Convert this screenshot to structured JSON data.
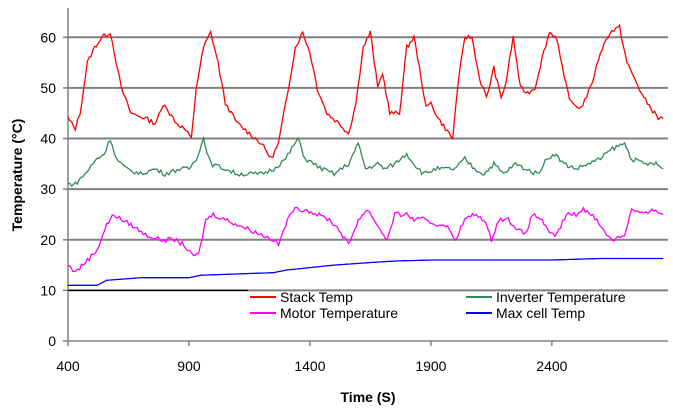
{
  "chart_data": {
    "type": "line",
    "xlabel": "Time (S)",
    "ylabel": "Temperature (°C)",
    "xlim": [
      400,
      2880
    ],
    "ylim": [
      0,
      65
    ],
    "x_ticks": [
      400,
      900,
      1400,
      1900,
      2400
    ],
    "y_ticks": [
      0,
      10,
      20,
      30,
      40,
      50,
      60
    ],
    "grid": "horizontal",
    "legend_placement": "lower-center",
    "series": [
      {
        "name": "Stack Temp",
        "color": "#ff0000",
        "points": [
          [
            400,
            44
          ],
          [
            430,
            42
          ],
          [
            450,
            45
          ],
          [
            480,
            55
          ],
          [
            510,
            58
          ],
          [
            540,
            60
          ],
          [
            575,
            61
          ],
          [
            600,
            55
          ],
          [
            620,
            50
          ],
          [
            660,
            45
          ],
          [
            720,
            44
          ],
          [
            760,
            43
          ],
          [
            800,
            47
          ],
          [
            820,
            45
          ],
          [
            850,
            43
          ],
          [
            880,
            42
          ],
          [
            910,
            40
          ],
          [
            930,
            50
          ],
          [
            960,
            58
          ],
          [
            990,
            61
          ],
          [
            1020,
            55
          ],
          [
            1050,
            47
          ],
          [
            1100,
            43
          ],
          [
            1150,
            41
          ],
          [
            1200,
            39
          ],
          [
            1240,
            36
          ],
          [
            1270,
            39
          ],
          [
            1300,
            47
          ],
          [
            1340,
            58
          ],
          [
            1370,
            61
          ],
          [
            1400,
            57
          ],
          [
            1430,
            50
          ],
          [
            1470,
            45
          ],
          [
            1520,
            43
          ],
          [
            1560,
            41
          ],
          [
            1590,
            47
          ],
          [
            1620,
            58
          ],
          [
            1650,
            61
          ],
          [
            1680,
            50
          ],
          [
            1700,
            53
          ],
          [
            1730,
            45
          ],
          [
            1770,
            45
          ],
          [
            1800,
            58
          ],
          [
            1830,
            60
          ],
          [
            1860,
            52
          ],
          [
            1880,
            46
          ],
          [
            1900,
            47
          ],
          [
            1930,
            44
          ],
          [
            1960,
            42
          ],
          [
            1990,
            40
          ],
          [
            2010,
            50
          ],
          [
            2040,
            60
          ],
          [
            2070,
            60
          ],
          [
            2100,
            52
          ],
          [
            2130,
            48
          ],
          [
            2160,
            54
          ],
          [
            2190,
            48
          ],
          [
            2210,
            51
          ],
          [
            2240,
            60
          ],
          [
            2270,
            50
          ],
          [
            2300,
            49
          ],
          [
            2330,
            50
          ],
          [
            2360,
            56
          ],
          [
            2390,
            61
          ],
          [
            2420,
            60
          ],
          [
            2450,
            52
          ],
          [
            2480,
            47
          ],
          [
            2520,
            46
          ],
          [
            2560,
            50
          ],
          [
            2600,
            57
          ],
          [
            2640,
            61
          ],
          [
            2680,
            62
          ],
          [
            2710,
            55
          ],
          [
            2740,
            52
          ],
          [
            2780,
            48
          ],
          [
            2810,
            46
          ],
          [
            2840,
            44
          ],
          [
            2860,
            44
          ]
        ]
      },
      {
        "name": "Inverter Temperature",
        "color": "#2e8b57",
        "points": [
          [
            400,
            31
          ],
          [
            430,
            31
          ],
          [
            470,
            33
          ],
          [
            520,
            36
          ],
          [
            550,
            37
          ],
          [
            575,
            40
          ],
          [
            600,
            36
          ],
          [
            640,
            34
          ],
          [
            700,
            33
          ],
          [
            760,
            34
          ],
          [
            800,
            33
          ],
          [
            860,
            34
          ],
          [
            900,
            34
          ],
          [
            930,
            36
          ],
          [
            960,
            40
          ],
          [
            990,
            35
          ],
          [
            1050,
            34
          ],
          [
            1100,
            33
          ],
          [
            1150,
            33
          ],
          [
            1200,
            33
          ],
          [
            1250,
            34
          ],
          [
            1300,
            36
          ],
          [
            1350,
            40
          ],
          [
            1380,
            36
          ],
          [
            1450,
            34
          ],
          [
            1500,
            33
          ],
          [
            1560,
            35
          ],
          [
            1600,
            39
          ],
          [
            1630,
            34
          ],
          [
            1680,
            35
          ],
          [
            1710,
            34
          ],
          [
            1750,
            35
          ],
          [
            1800,
            37
          ],
          [
            1830,
            35
          ],
          [
            1870,
            33
          ],
          [
            1920,
            34
          ],
          [
            1960,
            34
          ],
          [
            2000,
            34
          ],
          [
            2040,
            36
          ],
          [
            2080,
            34
          ],
          [
            2120,
            33
          ],
          [
            2160,
            35
          ],
          [
            2200,
            33
          ],
          [
            2250,
            35
          ],
          [
            2290,
            34
          ],
          [
            2340,
            33
          ],
          [
            2380,
            36
          ],
          [
            2410,
            37
          ],
          [
            2450,
            35
          ],
          [
            2500,
            34
          ],
          [
            2550,
            35
          ],
          [
            2600,
            36
          ],
          [
            2650,
            38
          ],
          [
            2700,
            39
          ],
          [
            2730,
            36
          ],
          [
            2780,
            35
          ],
          [
            2830,
            35
          ],
          [
            2860,
            34
          ]
        ]
      },
      {
        "name": "Motor Temperature",
        "color": "#ff00ff",
        "points": [
          [
            400,
            15
          ],
          [
            420,
            14
          ],
          [
            440,
            14
          ],
          [
            480,
            16
          ],
          [
            520,
            18
          ],
          [
            560,
            23
          ],
          [
            590,
            25
          ],
          [
            620,
            24
          ],
          [
            660,
            23
          ],
          [
            720,
            21
          ],
          [
            780,
            20
          ],
          [
            840,
            20
          ],
          [
            880,
            19
          ],
          [
            910,
            17
          ],
          [
            940,
            17
          ],
          [
            970,
            24
          ],
          [
            1000,
            25
          ],
          [
            1050,
            24
          ],
          [
            1100,
            23
          ],
          [
            1150,
            22
          ],
          [
            1200,
            21
          ],
          [
            1250,
            20
          ],
          [
            1270,
            19
          ],
          [
            1300,
            23
          ],
          [
            1330,
            26
          ],
          [
            1380,
            26
          ],
          [
            1430,
            25
          ],
          [
            1480,
            24
          ],
          [
            1520,
            22
          ],
          [
            1560,
            19
          ],
          [
            1600,
            24
          ],
          [
            1640,
            26
          ],
          [
            1690,
            22
          ],
          [
            1720,
            20
          ],
          [
            1750,
            25
          ],
          [
            1800,
            25
          ],
          [
            1830,
            24
          ],
          [
            1870,
            24
          ],
          [
            1920,
            23
          ],
          [
            1960,
            23
          ],
          [
            2000,
            20
          ],
          [
            2040,
            24
          ],
          [
            2080,
            25
          ],
          [
            2120,
            24
          ],
          [
            2150,
            20
          ],
          [
            2180,
            24
          ],
          [
            2220,
            24
          ],
          [
            2260,
            22
          ],
          [
            2290,
            21
          ],
          [
            2320,
            25
          ],
          [
            2360,
            24
          ],
          [
            2390,
            21
          ],
          [
            2420,
            21
          ],
          [
            2460,
            25
          ],
          [
            2500,
            25
          ],
          [
            2530,
            26
          ],
          [
            2570,
            25
          ],
          [
            2610,
            22
          ],
          [
            2650,
            20
          ],
          [
            2700,
            21
          ],
          [
            2730,
            26
          ],
          [
            2780,
            25
          ],
          [
            2830,
            26
          ],
          [
            2860,
            25
          ]
        ]
      },
      {
        "name": "Max cell Temp",
        "color": "#0000ff",
        "points": [
          [
            400,
            11
          ],
          [
            520,
            11
          ],
          [
            560,
            12
          ],
          [
            700,
            12.5
          ],
          [
            900,
            12.5
          ],
          [
            950,
            13
          ],
          [
            1250,
            13.5
          ],
          [
            1300,
            14
          ],
          [
            1400,
            14.5
          ],
          [
            1500,
            15
          ],
          [
            1650,
            15.5
          ],
          [
            1750,
            15.8
          ],
          [
            1900,
            16
          ],
          [
            2400,
            16
          ],
          [
            2600,
            16.3
          ],
          [
            2860,
            16.3
          ]
        ]
      },
      {
        "name": "",
        "color": "#000000",
        "points": [
          [
            400,
            10
          ],
          [
            1145,
            10
          ]
        ]
      }
    ]
  }
}
